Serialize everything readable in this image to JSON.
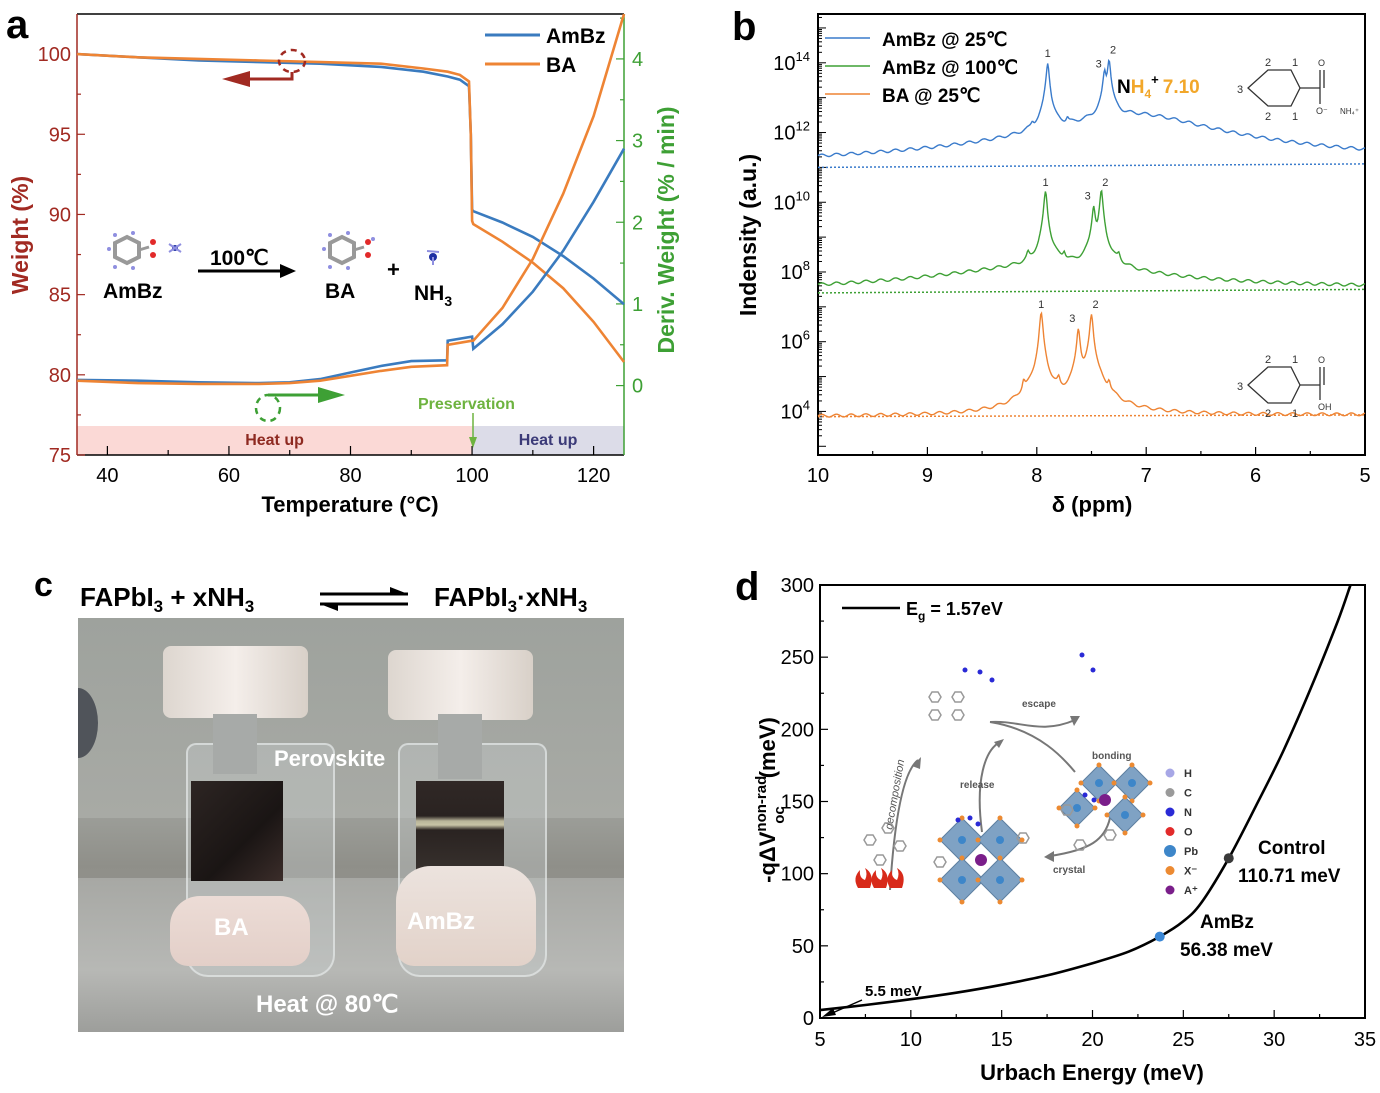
{
  "panels": {
    "a": {
      "letter": "a"
    },
    "b": {
      "letter": "b"
    },
    "c": {
      "letter": "c"
    },
    "d": {
      "letter": "d"
    }
  },
  "chart_data": [
    {
      "id": "a",
      "type": "line",
      "xlabel": "Temperature (°C)",
      "ylabel": "Weight (%)",
      "y2label": "Deriv. Weight (% / min)",
      "xlim": [
        35,
        125
      ],
      "ylim": [
        75,
        102.5
      ],
      "y2lim": [
        -0.85,
        4.55
      ],
      "xticks": [
        40,
        60,
        80,
        100,
        120
      ],
      "yticks": [
        75,
        80,
        85,
        90,
        95,
        100
      ],
      "y2ticks": [
        0,
        1,
        2,
        3,
        4
      ],
      "colors": {
        "AmBz": "#3a7bbf",
        "BA": "#ee8434",
        "left_axis": "#a12a22",
        "right_axis": "#3ea035"
      },
      "legend": {
        "position": "top-right",
        "entries": [
          "AmBz",
          "BA"
        ]
      },
      "series": [
        {
          "name": "AmBz",
          "kind": "weight",
          "axis": "left",
          "x": [
            35,
            45,
            55,
            65,
            75,
            85,
            92,
            96,
            98,
            99.5,
            99.8,
            100,
            100.2,
            105,
            110,
            115,
            120,
            125
          ],
          "y": [
            100,
            99.8,
            99.6,
            99.5,
            99.4,
            99.2,
            98.9,
            98.6,
            98.4,
            98.0,
            95.0,
            90.3,
            90.2,
            89.5,
            88.6,
            87.4,
            86.0,
            84.4
          ]
        },
        {
          "name": "BA",
          "kind": "weight",
          "axis": "left",
          "x": [
            35,
            45,
            55,
            65,
            75,
            85,
            92,
            96,
            98,
            99.5,
            99.8,
            100,
            100.2,
            105,
            110,
            115,
            120,
            125
          ],
          "y": [
            100,
            99.8,
            99.7,
            99.6,
            99.5,
            99.4,
            99.1,
            98.9,
            98.7,
            98.3,
            95.0,
            89.6,
            89.4,
            88.3,
            87.0,
            85.4,
            83.3,
            80.8
          ]
        },
        {
          "name": "AmBz",
          "kind": "deriv",
          "axis": "right",
          "x": [
            35,
            45,
            55,
            65,
            70,
            75,
            80,
            85,
            90,
            95.9,
            96,
            100,
            100.2,
            105,
            110,
            115,
            120,
            125
          ],
          "y": [
            0.07,
            0.06,
            0.04,
            0.03,
            0.04,
            0.08,
            0.16,
            0.24,
            0.3,
            0.31,
            0.55,
            0.6,
            0.45,
            0.75,
            1.15,
            1.65,
            2.25,
            2.9
          ]
        },
        {
          "name": "BA",
          "kind": "deriv",
          "axis": "right",
          "x": [
            35,
            45,
            55,
            65,
            70,
            75,
            80,
            85,
            90,
            95.9,
            96,
            100,
            100.2,
            105,
            110,
            115,
            120,
            125
          ],
          "y": [
            0.06,
            0.03,
            0.02,
            0.02,
            0.03,
            0.06,
            0.12,
            0.18,
            0.23,
            0.25,
            0.5,
            0.55,
            0.55,
            0.95,
            1.55,
            2.35,
            3.3,
            4.55
          ]
        }
      ],
      "bands": [
        {
          "label": "Heat up",
          "from": 35,
          "to": 100,
          "color": "#fbd9d6",
          "text_color": "#8e2a21"
        },
        {
          "label": "Heat up",
          "from": 100,
          "to": 125,
          "color": "#dcdce8",
          "text_color": "#3b3a78"
        }
      ],
      "annotations": {
        "preservation": "Preservation",
        "reaction": {
          "reactant": "AmBz",
          "condition": "100℃",
          "product1": "BA",
          "plus": "+",
          "product2_main": "NH",
          "product2_sub": "3"
        }
      }
    },
    {
      "id": "b",
      "type": "line",
      "xlabel": "δ (ppm)",
      "ylabel": "Indensity (a.u.)",
      "xlim": [
        10,
        5
      ],
      "ylog": true,
      "ylim_exponent": [
        2.75,
        15.4
      ],
      "xticks": [
        10,
        9,
        8,
        7,
        6,
        5
      ],
      "yticks_exponent": [
        4,
        6,
        8,
        10,
        12,
        14
      ],
      "legend": {
        "position": "top-left",
        "entries": [
          "AmBz @ 25℃",
          "AmBz @ 100℃",
          "BA @ 25℃"
        ]
      },
      "colors": {
        "AmBz @ 25℃": "#3a7bcb",
        "AmBz @ 100℃": "#3ea035",
        "BA @ 25℃": "#ee8434",
        "nh4_highlight": "#f2a72a"
      },
      "series": [
        {
          "name": "AmBz @ 25℃",
          "baseline_exp": [
            11.0,
            11.1
          ],
          "peaks": [
            {
              "ppm": 8.04,
              "exp": 11.7
            },
            {
              "ppm": 7.9,
              "exp": 14.0,
              "label": "1"
            },
            {
              "ppm": 7.72,
              "exp": 11.9
            },
            {
              "ppm": 7.38,
              "exp": 13.7,
              "label": "3"
            },
            {
              "ppm": 7.34,
              "exp": 14.1,
              "label": "2"
            }
          ],
          "broad": {
            "ppm": 7.1,
            "exp": 12.5,
            "label": "NH4+ 7.10"
          }
        },
        {
          "name": "AmBz @ 100℃",
          "baseline_exp": [
            7.4,
            7.5
          ],
          "peaks": [
            {
              "ppm": 8.08,
              "exp": 8.1
            },
            {
              "ppm": 7.92,
              "exp": 10.3,
              "label": "1"
            },
            {
              "ppm": 7.75,
              "exp": 8.2
            },
            {
              "ppm": 7.48,
              "exp": 9.9,
              "label": "3"
            },
            {
              "ppm": 7.41,
              "exp": 10.3,
              "label": "2"
            },
            {
              "ppm": 7.25,
              "exp": 8.1
            }
          ],
          "broad": {
            "ppm": 7.9,
            "exp": 8.05
          }
        },
        {
          "name": "BA @ 25℃",
          "baseline_exp": [
            3.85,
            3.9
          ],
          "peaks": [
            {
              "ppm": 8.12,
              "exp": 4.6
            },
            {
              "ppm": 7.96,
              "exp": 6.8,
              "label": "1"
            },
            {
              "ppm": 7.8,
              "exp": 4.6
            },
            {
              "ppm": 7.62,
              "exp": 6.4,
              "label": "3"
            },
            {
              "ppm": 7.5,
              "exp": 6.8,
              "label": "2"
            },
            {
              "ppm": 7.34,
              "exp": 4.6
            }
          ]
        }
      ],
      "annotations": {
        "nh4_label_N": "N",
        "nh4_label_H": "H",
        "nh4_sub": "4",
        "nh4_sup": "+",
        "nh4_value": "7.10",
        "ring_numbers_top": [
          "2",
          "1",
          "3",
          "2",
          "1"
        ],
        "carboxylate": "O⁻",
        "ammonium": "NH₄⁺",
        "carbonyl_o": "O",
        "hydroxyl": "OH"
      }
    },
    {
      "id": "d",
      "type": "line",
      "xlabel": "Urbach Energy (meV)",
      "ylabel_main": "-qΔV",
      "ylabel_sup": "non-rad",
      "ylabel_sub": "oc",
      "ylabel_unit": "(meV)",
      "xlim": [
        5,
        35
      ],
      "ylim": [
        0,
        300
      ],
      "xticks": [
        5,
        10,
        15,
        20,
        25,
        30,
        35
      ],
      "yticks": [
        0,
        50,
        100,
        150,
        200,
        250,
        300
      ],
      "legend": {
        "position": "top-left",
        "entries": [
          "Eg = 1.57eV"
        ],
        "label_main": "E",
        "label_sub": "g",
        "label_rest": " = 1.57eV"
      },
      "series": [
        {
          "name": "Eg = 1.57eV",
          "x": [
            5,
            7.5,
            10,
            12.5,
            15,
            17.5,
            20,
            22,
            23.7,
            25,
            26,
            27.5,
            29,
            30.5,
            32,
            33.5,
            34.2
          ],
          "y": [
            5.5,
            9,
            13,
            17.5,
            23,
            29.5,
            38,
            46,
            56.38,
            67,
            80,
            110.71,
            147,
            185,
            228,
            275,
            300
          ]
        }
      ],
      "points": [
        {
          "name": "AmBz",
          "x": 23.7,
          "y": 56.38,
          "label": "AmBz",
          "value_label": "56.38 meV",
          "color": "#3a87d6"
        },
        {
          "name": "Control",
          "x": 27.5,
          "y": 110.71,
          "label": "Control",
          "value_label": "110.71 meV",
          "color": "#3a3a3a"
        }
      ],
      "annotations": {
        "start": "5.5 meV",
        "mechanism": [
          "decomposition",
          "escape",
          "bonding",
          "release",
          "crystal"
        ],
        "atom_legend": [
          {
            "symbol": "H",
            "color": "#a7a7e6"
          },
          {
            "symbol": "C",
            "color": "#9a9a9a"
          },
          {
            "symbol": "N",
            "color": "#2a2ad6"
          },
          {
            "symbol": "O",
            "color": "#e22a2a"
          },
          {
            "symbol": "Pb",
            "color": "#3d86c9"
          },
          {
            "symbol": "X⁻",
            "color": "#ec8a32"
          },
          {
            "symbol": "A⁺",
            "color": "#7a1e8a"
          }
        ]
      }
    }
  ],
  "photo": {
    "equation": {
      "left_main": "FAPbI",
      "left_sub": "3",
      "left_rest": " + xNH",
      "left_sub2": "3",
      "right_main": "FAPbI",
      "right_sub": "3",
      "right_rest": "·xNH",
      "right_sub2": "3"
    },
    "labels": {
      "film": "Perovskite",
      "left_vial": "BA",
      "right_vial": "AmBz",
      "condition": "Heat @ 80℃"
    }
  }
}
